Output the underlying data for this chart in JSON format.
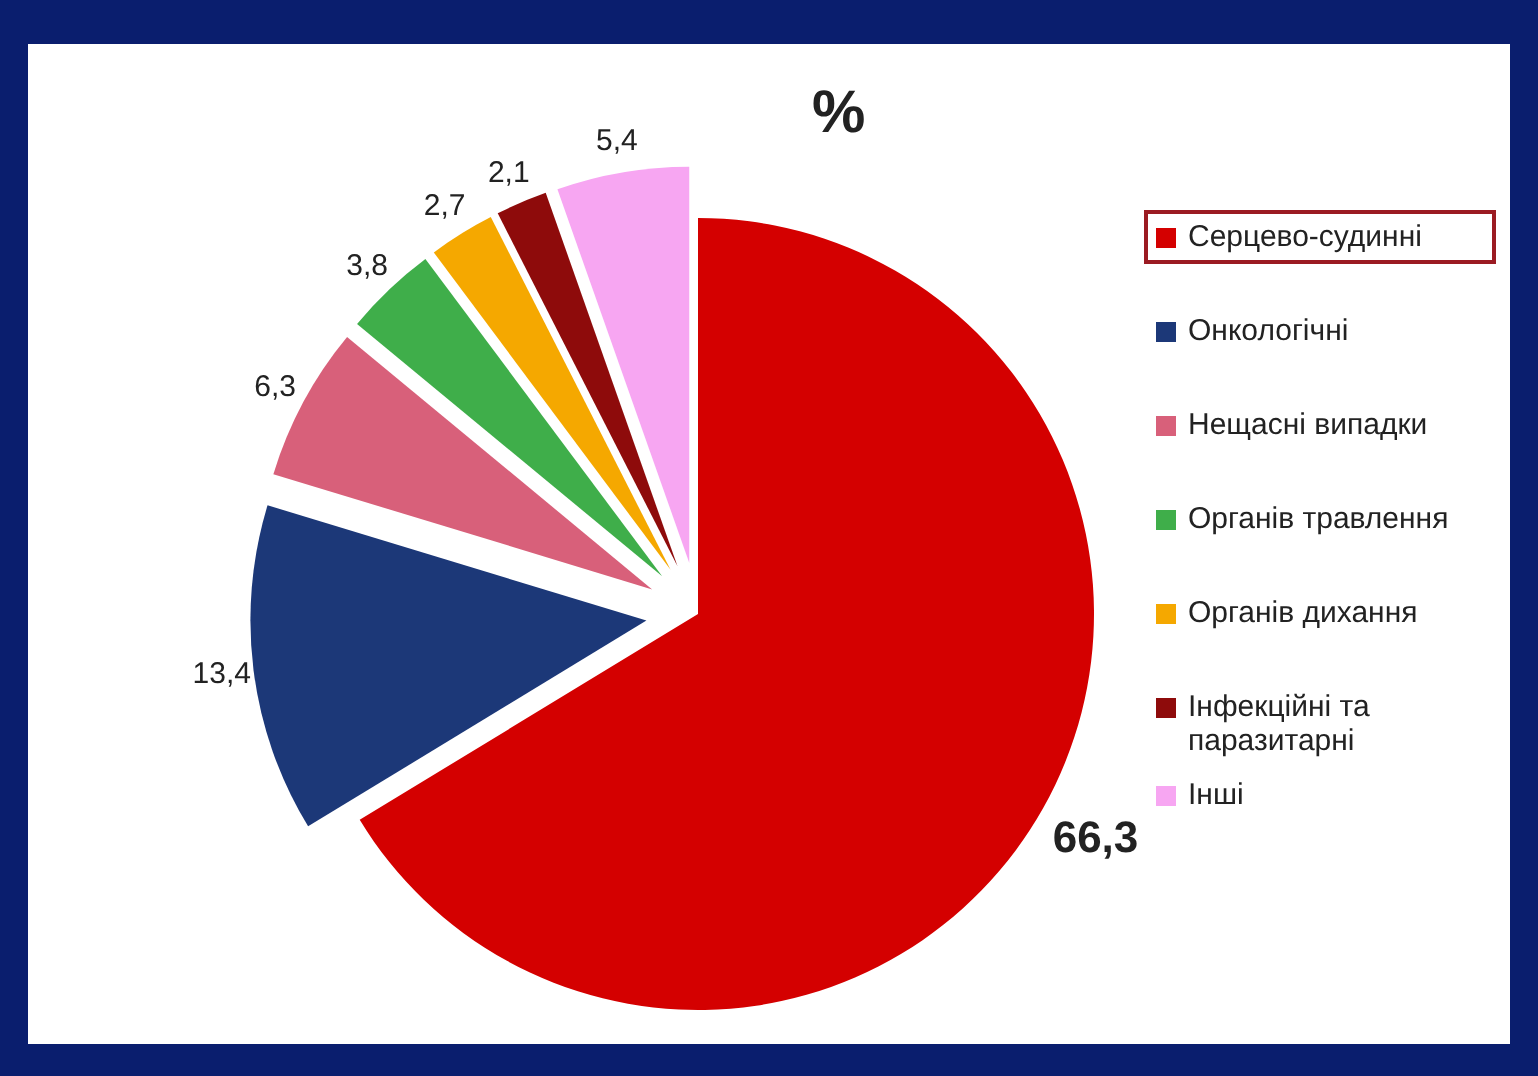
{
  "chart_data": {
    "type": "pie",
    "title": "%",
    "categories": [
      "Серцево-судинні",
      "Онкологічні",
      "Нещасні випадки",
      "Органів травлення",
      "Органів дихання",
      "Інфекційні та паразитарні",
      "Інші"
    ],
    "values": [
      66.3,
      13.4,
      6.3,
      3.8,
      2.7,
      2.1,
      5.4
    ],
    "value_labels": [
      "66,3",
      "13,4",
      "6,3",
      "3,8",
      "2,7",
      "2,1",
      "5,4"
    ],
    "colors": [
      "#d40000",
      "#1c3878",
      "#d8607a",
      "#3fae4a",
      "#f5a800",
      "#8e0b0b",
      "#f7a6f2"
    ],
    "legend": "right"
  }
}
